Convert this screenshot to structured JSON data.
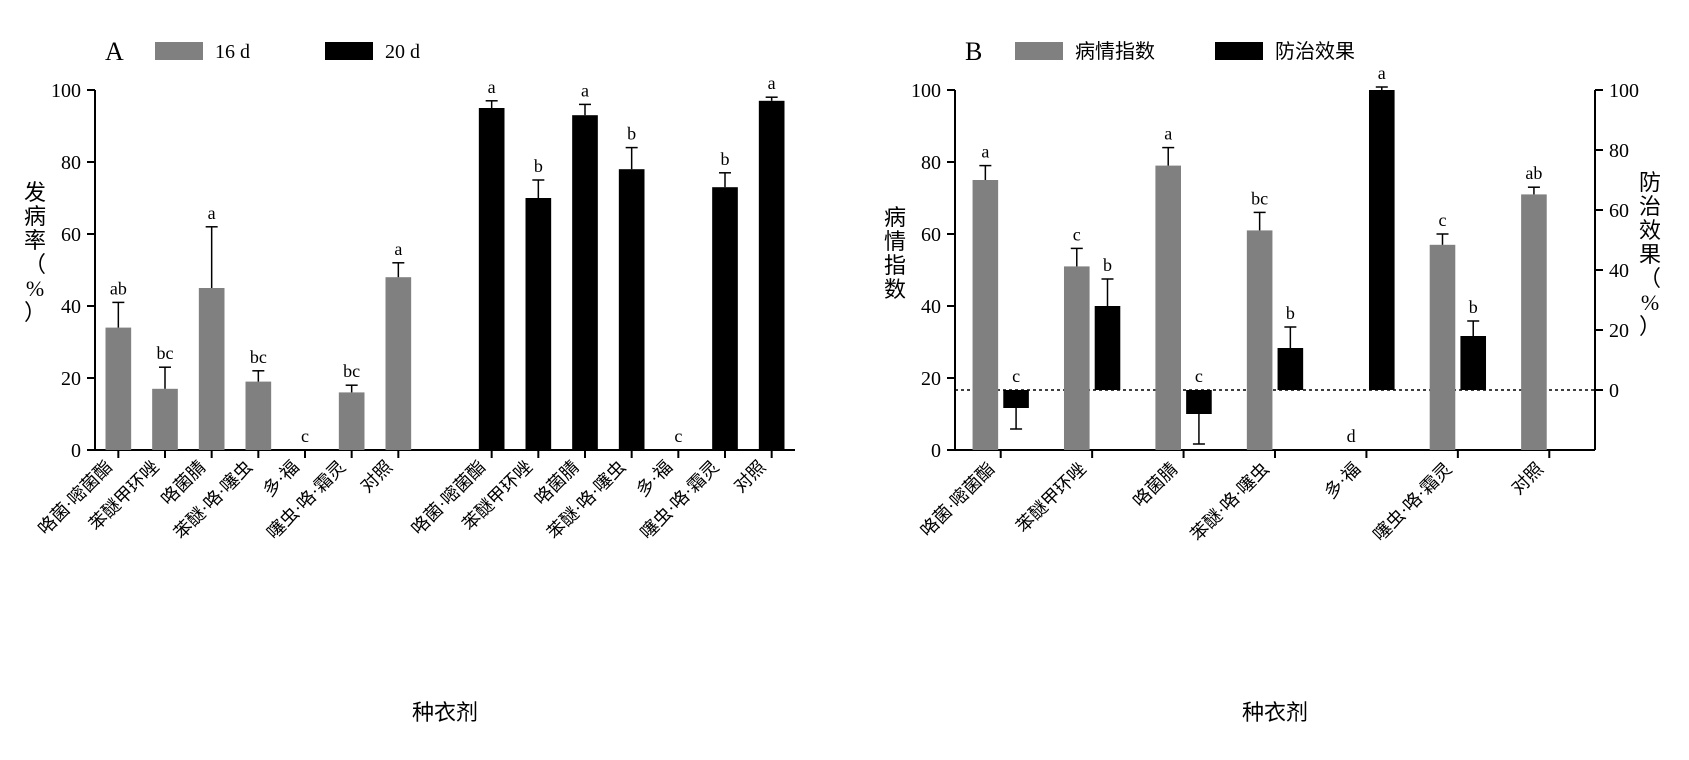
{
  "categories": [
    "咯菌·嘧菌酯",
    "苯醚甲环唑",
    "咯菌腈",
    "苯醚·咯·噻虫",
    "多·福",
    "噻虫·咯·霜灵",
    "对照"
  ],
  "panelA": {
    "letter": "A",
    "ylabel": "发病率（%）",
    "xlabel": "种衣剂",
    "ylim": [
      0,
      100
    ],
    "ytick_step": 20,
    "legend": [
      {
        "color": "#808080",
        "label": "16 d"
      },
      {
        "color": "#000000",
        "label": "20 d"
      }
    ],
    "series1_color": "#808080",
    "series2_color": "#000000",
    "bar_width": 0.55,
    "group1": {
      "values": [
        34,
        17,
        45,
        19,
        0,
        16,
        48
      ],
      "err": [
        7,
        6,
        17,
        3,
        0,
        2,
        4
      ],
      "sig": [
        "ab",
        "bc",
        "a",
        "bc",
        "c",
        "bc",
        "a"
      ]
    },
    "group2": {
      "values": [
        95,
        70,
        93,
        78,
        0,
        73,
        97
      ],
      "err": [
        2,
        5,
        3,
        6,
        0,
        4,
        1
      ],
      "sig": [
        "a",
        "b",
        "a",
        "b",
        "c",
        "b",
        "a"
      ]
    }
  },
  "panelB": {
    "letter": "B",
    "y1label": "病情指数",
    "y2label": "防治效果（%）",
    "xlabel": "种衣剂",
    "y1lim": [
      0,
      100
    ],
    "y1tick_step": 20,
    "y2lim": [
      -20,
      100
    ],
    "y2tick_step_major": 20,
    "gray_color": "#808080",
    "black_color": "#000000",
    "legend": [
      {
        "color": "#808080",
        "label": "病情指数"
      },
      {
        "color": "#000000",
        "label": "防治效果"
      }
    ],
    "gray": {
      "values": [
        75,
        51,
        79,
        61,
        0,
        57,
        71
      ],
      "err": [
        4,
        5,
        5,
        5,
        0,
        3,
        2
      ],
      "sig": [
        "a",
        "c",
        "a",
        "bc",
        "d",
        "c",
        "ab"
      ]
    },
    "black": {
      "values": [
        -6,
        28,
        -8,
        14,
        100,
        18,
        null
      ],
      "err": [
        7,
        9,
        10,
        7,
        1,
        5,
        0
      ],
      "sig": [
        "c",
        "b",
        "c",
        "b",
        "a",
        "b",
        ""
      ]
    }
  },
  "colors": {
    "bg": "#ffffff"
  },
  "font": {
    "axis_title_pt": 22,
    "tick_pt": 20,
    "sig_pt": 18
  }
}
